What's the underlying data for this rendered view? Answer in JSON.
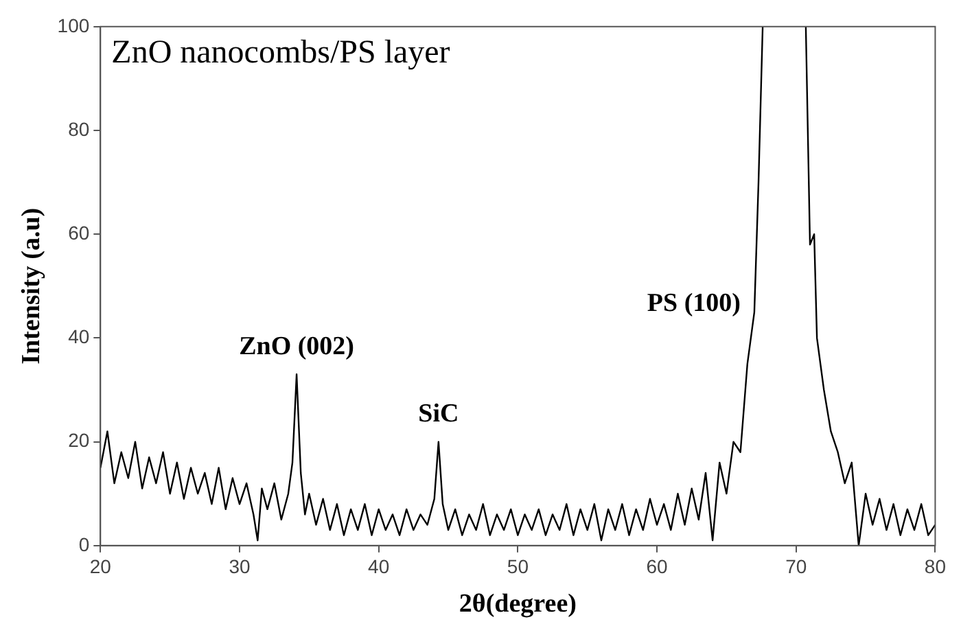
{
  "chart_data": {
    "type": "line",
    "title": "ZnO nanocombs/PS layer",
    "xlabel": "2θ(degree)",
    "ylabel": "Intensity (a.u)",
    "x": [
      20,
      20.5,
      21,
      21.5,
      22,
      22.5,
      23,
      23.5,
      24,
      24.5,
      25,
      25.5,
      26,
      26.5,
      27,
      27.5,
      28,
      28.5,
      29,
      29.5,
      30,
      30.5,
      31,
      31.3,
      31.6,
      32,
      32.5,
      33,
      33.5,
      33.8,
      34.1,
      34.4,
      34.7,
      35,
      35.5,
      36,
      36.5,
      37,
      37.5,
      38,
      38.5,
      39,
      39.5,
      40,
      40.5,
      41,
      41.5,
      42,
      42.5,
      43,
      43.5,
      44,
      44.3,
      44.6,
      45,
      45.5,
      46,
      46.5,
      47,
      47.5,
      48,
      48.5,
      49,
      49.5,
      50,
      50.5,
      51,
      51.5,
      52,
      52.5,
      53,
      53.5,
      54,
      54.5,
      55,
      55.5,
      56,
      56.5,
      57,
      57.5,
      58,
      58.5,
      59,
      59.5,
      60,
      60.5,
      61,
      61.5,
      62,
      62.5,
      63,
      63.5,
      64,
      64.5,
      65,
      65.5,
      66,
      66.5,
      67,
      67.3,
      67.6,
      69,
      70.7,
      71,
      71.3,
      71.5,
      72,
      72.5,
      73,
      73.5,
      74,
      74.5,
      75,
      75.5,
      76,
      76.5,
      77,
      77.5,
      78,
      78.5,
      79,
      79.5,
      80
    ],
    "series": [
      {
        "color": "#000000",
        "values": [
          15,
          22,
          12,
          18,
          13,
          20,
          11,
          17,
          12,
          18,
          10,
          16,
          9,
          15,
          10,
          14,
          8,
          15,
          7,
          13,
          8,
          12,
          6,
          1,
          11,
          7,
          12,
          5,
          10,
          16,
          33,
          14,
          6,
          10,
          4,
          9,
          3,
          8,
          2,
          7,
          3,
          8,
          2,
          7,
          3,
          6,
          2,
          7,
          3,
          6,
          4,
          9,
          20,
          8,
          3,
          7,
          2,
          6,
          3,
          8,
          2,
          6,
          3,
          7,
          2,
          6,
          3,
          7,
          2,
          6,
          3,
          8,
          2,
          7,
          3,
          8,
          1,
          7,
          3,
          8,
          2,
          7,
          3,
          9,
          4,
          8,
          3,
          10,
          4,
          11,
          5,
          14,
          1,
          16,
          10,
          20,
          18,
          35,
          45,
          70,
          100,
          null,
          100,
          58,
          60,
          40,
          30,
          22,
          18,
          12,
          16,
          0,
          10,
          4,
          9,
          3,
          8,
          2,
          7,
          3,
          8,
          2,
          4
        ]
      }
    ],
    "xlim": [
      20,
      80
    ],
    "xticks": [
      20,
      30,
      40,
      50,
      60,
      70,
      80
    ],
    "ylim": [
      0,
      100
    ],
    "yticks": [
      0,
      20,
      40,
      60,
      80,
      100
    ],
    "grid": false,
    "legend": false,
    "marker": "none",
    "line_style": "solid",
    "annotations": [
      {
        "text": "ZnO (002)",
        "x": 34.1,
        "y": 33
      },
      {
        "text": "SiC",
        "x": 44.3,
        "y": 20
      },
      {
        "text": "PS (100)",
        "x": 67,
        "y": 45
      }
    ]
  }
}
